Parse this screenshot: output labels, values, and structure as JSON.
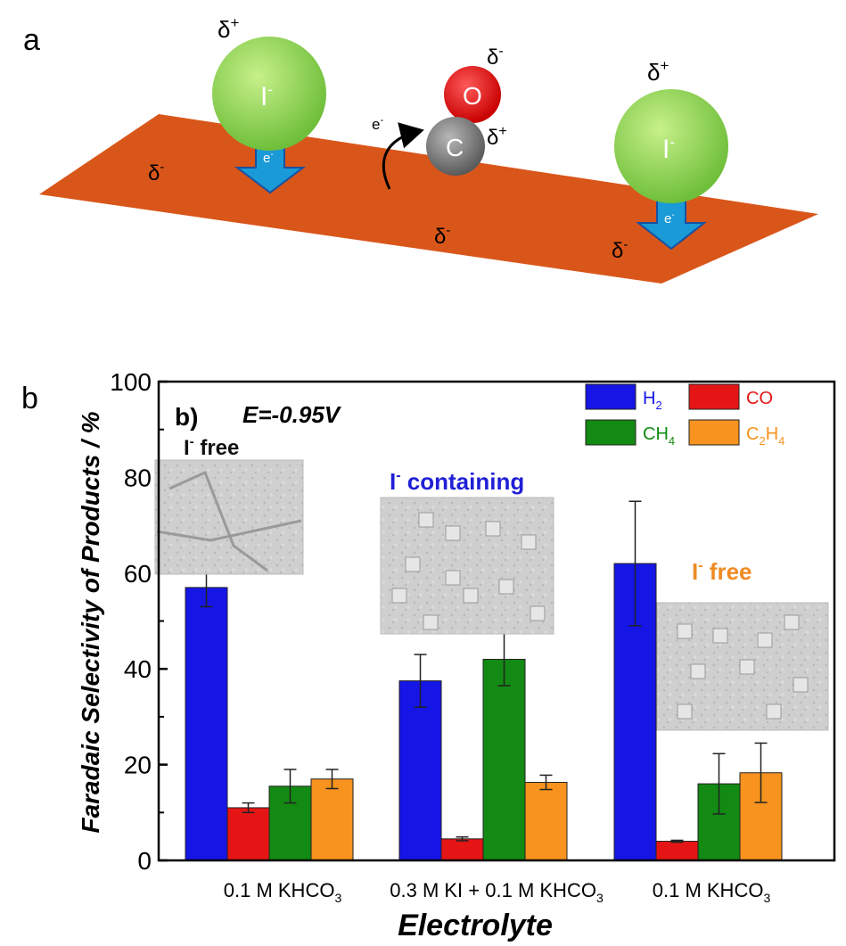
{
  "panel_a": {
    "label": "a",
    "iodide_left": {
      "symbol": "I",
      "sup": "-",
      "charge": "δ",
      "charge_sup": "+"
    },
    "iodide_right": {
      "symbol": "I",
      "sup": "-",
      "charge": "δ",
      "charge_sup": "+"
    },
    "oxygen": {
      "symbol": "O",
      "charge": "δ",
      "charge_sup": "-"
    },
    "carbon": {
      "symbol": "C",
      "charge": "δ",
      "charge_sup": "+"
    },
    "electron": {
      "symbol": "e",
      "sup": "-"
    },
    "arrow_label": {
      "symbol": "e",
      "sup": "-"
    },
    "surface_charges": [
      {
        "text": "δ",
        "sup": "-"
      },
      {
        "text": "δ",
        "sup": "-"
      },
      {
        "text": "δ",
        "sup": "-"
      }
    ],
    "colors": {
      "surface": "#d9561a",
      "iodide": "#8fd454",
      "oxygen": "#e01616",
      "carbon": "#808080",
      "arrow": "#1a9ad6"
    }
  },
  "panel_b": {
    "label": "b",
    "inner_label": "b)",
    "potential": "E=-0.95V",
    "insets": [
      {
        "text": "I",
        "sup": "-",
        "rest": " free",
        "color": "#111111"
      },
      {
        "text": "I",
        "sup": "-",
        "rest": " containing",
        "color": "#1f1fd6"
      },
      {
        "text": "I",
        "sup": "-",
        "rest": " free",
        "color": "#f08a24"
      }
    ]
  },
  "chart_data": {
    "type": "bar",
    "ylabel": "Faradaic Selectivity of Products / %",
    "xlabel": "Electrolyte",
    "ylim": [
      0,
      100
    ],
    "yticks": [
      "0",
      "20",
      "40",
      "60",
      "80",
      "100"
    ],
    "categories": [
      {
        "main": "0.1 M KHCO",
        "sub": "3"
      },
      {
        "main": "0.3 M KI + 0.1 M KHCO",
        "sub": "3"
      },
      {
        "main": "0.1 M KHCO",
        "sub": "3"
      }
    ],
    "series": [
      {
        "name": "H",
        "sub": "2",
        "color": "#1515e6",
        "values": [
          57,
          37.5,
          62
        ],
        "errors": [
          4,
          5.5,
          13
        ]
      },
      {
        "name": "CO",
        "sub": "",
        "color": "#e61515",
        "values": [
          11,
          4.5,
          4
        ],
        "errors": [
          1,
          0.4,
          0.2
        ]
      },
      {
        "name": "CH",
        "sub": "4",
        "color": "#138a13",
        "values": [
          15.5,
          42,
          16
        ],
        "errors": [
          3.5,
          5.5,
          6.3
        ]
      },
      {
        "name": "C",
        "sub": "2",
        "name2": "H",
        "sub2": "4",
        "color": "#f7931e",
        "values": [
          17,
          16.3,
          18.3
        ],
        "errors": [
          2,
          1.5,
          6.2
        ]
      }
    ],
    "legend_position": "top-right",
    "grid": false
  }
}
